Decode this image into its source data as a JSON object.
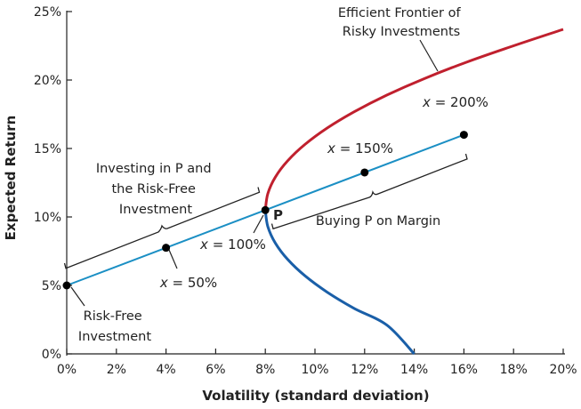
{
  "chart_data": {
    "type": "line",
    "xlabel": "Volatility (standard deviation)",
    "ylabel": "Expected Return",
    "xlim": [
      0,
      20
    ],
    "ylim": [
      0,
      25
    ],
    "x_ticks": [
      0,
      2,
      4,
      6,
      8,
      10,
      12,
      14,
      16,
      18,
      20
    ],
    "y_ticks": [
      0,
      5,
      10,
      15,
      20,
      25
    ],
    "x_tick_labels": [
      "0%",
      "2%",
      "4%",
      "6%",
      "8%",
      "10%",
      "12%",
      "14%",
      "16%",
      "18%",
      "20%"
    ],
    "y_tick_labels": [
      "0%",
      "5%",
      "10%",
      "15%",
      "20%",
      "25%"
    ],
    "grid": false,
    "colors": {
      "frontier_efficient": "#c0202e",
      "frontier_inefficient": "#1a5fa8",
      "capital_line": "#1b8fc4",
      "points": "#000000"
    },
    "series": [
      {
        "x": [
          8.0,
          8.1,
          8.4,
          8.9,
          9.6,
          10.5,
          11.6,
          12.9,
          14.4,
          16.1,
          18.0,
          20.0
        ],
        "y": [
          10.5,
          11.7,
          12.9,
          14.1,
          15.3,
          16.5,
          17.7,
          18.9,
          20.1,
          21.3,
          22.5,
          23.7
        ]
      },
      {
        "x": [
          8.0,
          8.1,
          8.4,
          8.9,
          9.6,
          10.5,
          11.6,
          12.9,
          14.0
        ],
        "y": [
          10.5,
          9.3,
          8.1,
          6.9,
          5.7,
          4.5,
          3.3,
          2.1,
          0.0
        ]
      },
      {
        "x": [
          0,
          16
        ],
        "y": [
          5,
          16
        ]
      }
    ],
    "points": [
      {
        "x": 0,
        "y": 5
      },
      {
        "x": 4,
        "y": 7.75
      },
      {
        "x": 8,
        "y": 10.5
      },
      {
        "x": 12,
        "y": 13.25
      },
      {
        "x": 16,
        "y": 16
      }
    ],
    "annotations": {
      "frontier": [
        "Efficient Frontier of",
        "Risky Investments"
      ],
      "investing": [
        "Investing in P and",
        "the Risk-Free",
        "Investment"
      ],
      "margin": "Buying P on Margin",
      "riskfree": [
        "Risk-Free",
        "Investment"
      ],
      "p_label": "P",
      "point_labels": [
        {
          "var": "x",
          "eq": " = 50%"
        },
        {
          "var": "x",
          "eq": " = 100%"
        },
        {
          "var": "x",
          "eq": " = 150%"
        },
        {
          "var": "x",
          "eq": " = 200%"
        }
      ]
    }
  }
}
